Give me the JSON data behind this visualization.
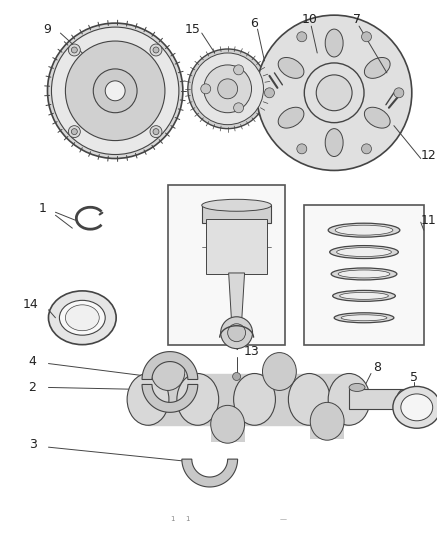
{
  "background_color": "#ffffff",
  "fig_width": 4.38,
  "fig_height": 5.33,
  "dpi": 100,
  "lc": "#444444",
  "fc_light": "#e8e8e8",
  "fc_mid": "#cccccc",
  "fc_dark": "#aaaaaa"
}
